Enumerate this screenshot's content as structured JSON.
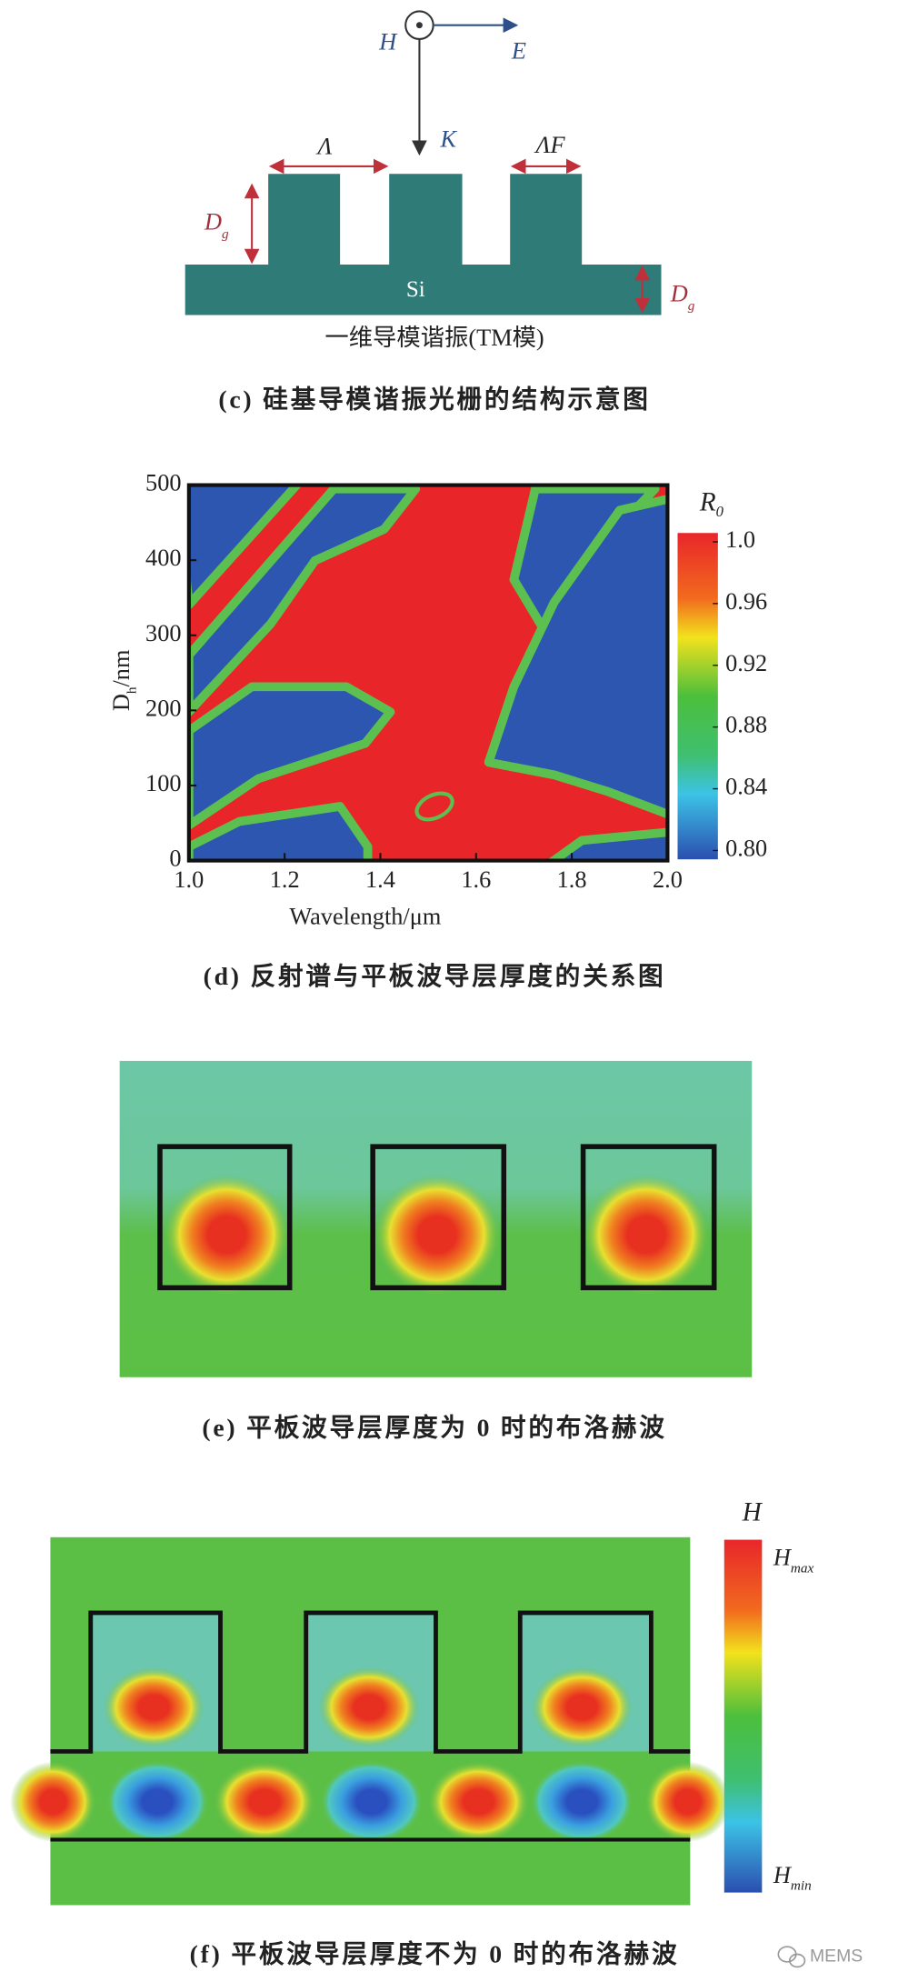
{
  "panel_c": {
    "labels": {
      "h": "H",
      "e": "E",
      "k": "K",
      "period": "Λ",
      "fill": "ΛF",
      "dg_left": "D",
      "dg_left_sub": "g",
      "si": "Si",
      "dg_right": "D",
      "dg_right_sub": "g"
    },
    "subtitle": "一维导模谐振(TM模)",
    "caption": "(c) 硅基导模谐振光栅的结构示意图"
  },
  "chart_data": {
    "type": "heatmap",
    "x_label": "Wavelength/μm",
    "y_label": {
      "main": "D",
      "sub": "h",
      "unit": "/nm"
    },
    "xlim": [
      1.0,
      2.0
    ],
    "xticks": [
      {
        "value": 1,
        "label": "1.0"
      },
      1.2,
      1.4,
      1.6,
      1.8,
      {
        "value": 2,
        "label": "2.0"
      }
    ],
    "ylim": [
      0,
      500
    ],
    "yticks": [
      0,
      100,
      200,
      300,
      400,
      500
    ],
    "colorbar": {
      "title": "R",
      "title_sub": "0",
      "clim": [
        0.8,
        1.0
      ],
      "ticks": [
        {
          "value": 1,
          "label": "1.0"
        },
        0.96,
        0.92,
        0.88,
        0.84,
        {
          "value": 0.8,
          "label": "0.80"
        }
      ]
    },
    "caption": "(d) 反射谱与平板波导层厚度的关系图"
  },
  "panel_e": {
    "caption": "(e) 平板波导层厚度为 0 时的布洛赫波"
  },
  "panel_f": {
    "colorbar": {
      "title": "H",
      "max": "H",
      "max_sub": "max",
      "min": "H",
      "min_sub": "min"
    },
    "caption": "(f) 平板波导层厚度不为 0 时的布洛赫波"
  },
  "watermark": "MEMS"
}
